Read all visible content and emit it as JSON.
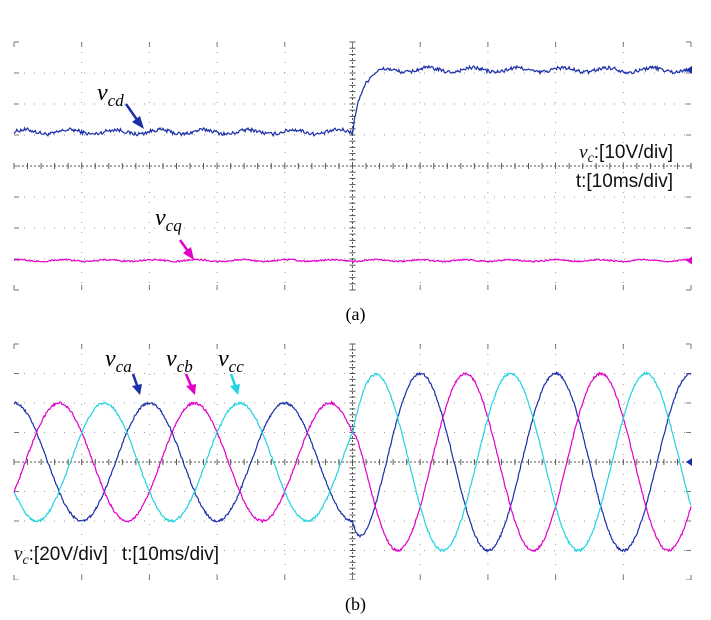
{
  "figure": {
    "caption_a": "(a)",
    "caption_b": "(b)"
  },
  "chart_data": [
    {
      "type": "line",
      "panel": "a",
      "grid": true,
      "x_divisions": 10,
      "y_divisions": 8,
      "scale": {
        "symbol": "v",
        "subscript": "c",
        "text": ":[10V/div]",
        "time": "t:[10ms/div]"
      },
      "ylim_div": [
        -4,
        4
      ],
      "step_at_div": 5,
      "series": [
        {
          "name": "cd",
          "symbol": "v",
          "color": "#1c2fa8",
          "level_before_div": 1.1,
          "level_after_div": 3.1,
          "ripple_div": 0.1
        },
        {
          "name": "cq",
          "symbol": "v",
          "color": "#e000c8",
          "level_before_div": -3.05,
          "level_after_div": -3.05,
          "ripple_div": 0.04
        }
      ]
    },
    {
      "type": "line",
      "panel": "b",
      "grid": true,
      "x_divisions": 10,
      "y_divisions": 8,
      "scale": {
        "symbol": "v",
        "subscript": "c",
        "text": ":[20V/div]",
        "time": "t:[10ms/div]"
      },
      "ylim_div": [
        -4,
        4
      ],
      "step_at_div": 5,
      "amplitude_before_div": 2.0,
      "amplitude_after_div": 3.0,
      "period_div": 2.0,
      "series": [
        {
          "name": "ca",
          "symbol": "v",
          "color": "#1c2fa8",
          "phase_deg": 0
        },
        {
          "name": "cb",
          "symbol": "v",
          "color": "#e000c8",
          "phase_deg": -120
        },
        {
          "name": "cc",
          "symbol": "v",
          "color": "#22d3e0",
          "phase_deg": 120
        }
      ]
    }
  ]
}
